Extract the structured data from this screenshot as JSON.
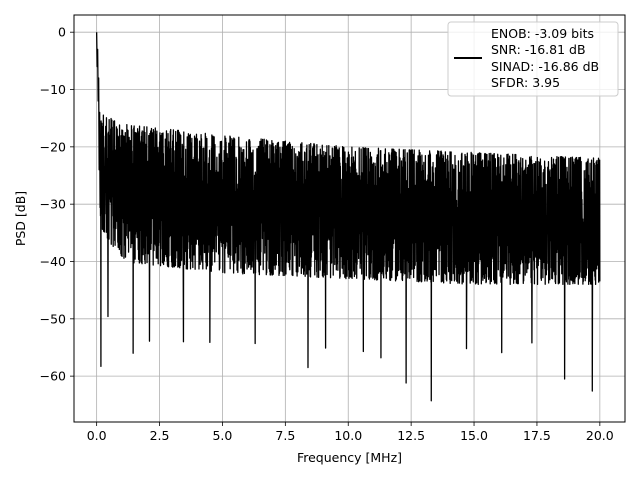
{
  "chart_data": {
    "type": "line",
    "title": "",
    "xlabel": "Frequency [MHz]",
    "ylabel": "PSD [dB]",
    "xlim": [
      -0.9,
      21.0
    ],
    "ylim": [
      -68,
      3
    ],
    "xticks": [
      0.0,
      2.5,
      5.0,
      7.5,
      10.0,
      12.5,
      15.0,
      17.5,
      20.0
    ],
    "xtick_labels": [
      "0.0",
      "2.5",
      "5.0",
      "7.5",
      "10.0",
      "12.5",
      "15.0",
      "17.5",
      "20.0"
    ],
    "yticks": [
      0,
      -10,
      -20,
      -30,
      -40,
      -50,
      -60
    ],
    "ytick_labels": [
      "0",
      "−10",
      "−20",
      "−30",
      "−40",
      "−50",
      "−60"
    ],
    "grid": true,
    "legend_position": "top-right",
    "legend": [
      "ENOB: -3.09 bits",
      "SNR: -16.81 dB",
      "SINAD: -16.86 dB",
      "SFDR: 3.95"
    ],
    "series": [
      {
        "color": "#000000",
        "x_range": [
          0,
          20
        ],
        "peak": {
          "x": 0.0,
          "y": 0.0
        },
        "ceiling_envelope": {
          "x": [
            0.1,
            1.0,
            5.0,
            10.0,
            15.0,
            20.0
          ],
          "y": [
            -14,
            -16,
            -18,
            -20,
            -21,
            -22
          ]
        },
        "floor_envelope": {
          "x": [
            0.1,
            1.0,
            5.0,
            10.0,
            15.0,
            20.0
          ],
          "y": [
            -34,
            -40,
            -42,
            -43,
            -44,
            -44
          ]
        },
        "deep_dips": [
          {
            "x": 0.17,
            "y": -58.3
          },
          {
            "x": 0.45,
            "y": -49.6
          },
          {
            "x": 1.45,
            "y": -56.0
          },
          {
            "x": 2.1,
            "y": -53.9
          },
          {
            "x": 3.45,
            "y": -54.0
          },
          {
            "x": 4.5,
            "y": -54.1
          },
          {
            "x": 6.3,
            "y": -54.3
          },
          {
            "x": 8.4,
            "y": -58.5
          },
          {
            "x": 9.1,
            "y": -55.1
          },
          {
            "x": 10.6,
            "y": -55.7
          },
          {
            "x": 11.3,
            "y": -56.8
          },
          {
            "x": 12.3,
            "y": -61.2
          },
          {
            "x": 13.3,
            "y": -64.3
          },
          {
            "x": 14.7,
            "y": -55.2
          },
          {
            "x": 16.1,
            "y": -55.9
          },
          {
            "x": 17.3,
            "y": -54.2
          },
          {
            "x": 18.6,
            "y": -60.5
          },
          {
            "x": 19.7,
            "y": -62.6
          }
        ]
      }
    ]
  }
}
